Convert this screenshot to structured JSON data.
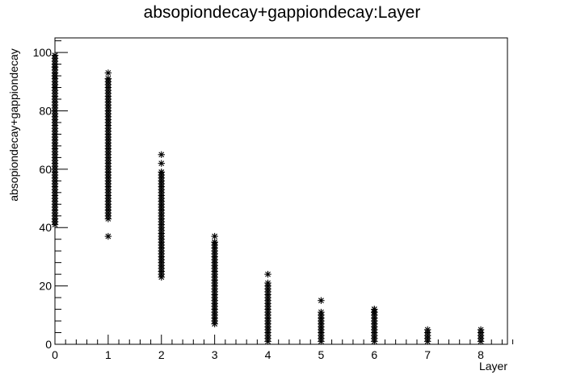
{
  "chart_data": {
    "type": "scatter",
    "title": "absopiondecay+gappiondecay:Layer",
    "xlabel": "Layer",
    "ylabel": "absopiondecay+gappiondecay",
    "xlim": [
      0,
      8.5
    ],
    "ylim": [
      0,
      105
    ],
    "x_ticks": [
      0,
      1,
      2,
      3,
      4,
      5,
      6,
      7,
      8
    ],
    "y_ticks": [
      0,
      20,
      40,
      60,
      80,
      100
    ],
    "marker": "asterisk",
    "grid": false,
    "columns": [
      {
        "x": 0,
        "y_min": 41,
        "y_max": 99,
        "extra": [
          99,
          95,
          92,
          88,
          42
        ]
      },
      {
        "x": 1,
        "y_min": 43,
        "y_max": 91,
        "extra": [
          93,
          91,
          37
        ]
      },
      {
        "x": 2,
        "y_min": 23,
        "y_max": 59,
        "extra": [
          65,
          62,
          59
        ]
      },
      {
        "x": 3,
        "y_min": 7,
        "y_max": 35,
        "extra": [
          37,
          35
        ]
      },
      {
        "x": 4,
        "y_min": 1,
        "y_max": 21,
        "extra": [
          24
        ]
      },
      {
        "x": 5,
        "y_min": 1,
        "y_max": 11,
        "extra": [
          15
        ]
      },
      {
        "x": 6,
        "y_min": 1,
        "y_max": 12,
        "extra": [
          12,
          11
        ]
      },
      {
        "x": 7,
        "y_min": 1,
        "y_max": 5,
        "extra": []
      },
      {
        "x": 8,
        "y_min": 1,
        "y_max": 5,
        "extra": []
      }
    ]
  }
}
